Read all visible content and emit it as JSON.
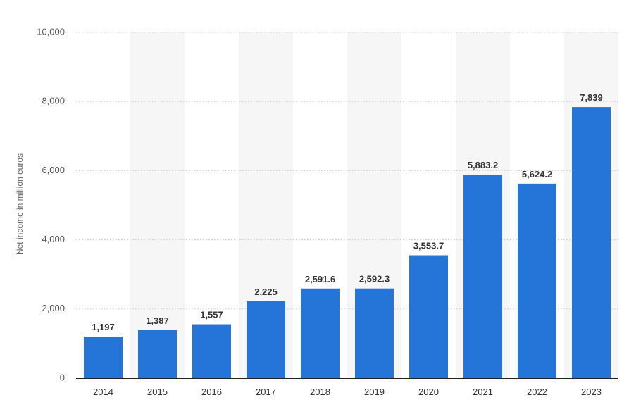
{
  "chart_data": {
    "type": "bar",
    "title": "",
    "xlabel": "",
    "ylabel": "Net income in million euros",
    "categories": [
      "2014",
      "2015",
      "2016",
      "2017",
      "2018",
      "2019",
      "2020",
      "2021",
      "2022",
      "2023"
    ],
    "values": [
      1197,
      1387,
      1557,
      2225,
      2591.6,
      2592.3,
      3553.7,
      5883.2,
      5624.2,
      7839
    ],
    "value_labels": [
      "1,197",
      "1,387",
      "1,557",
      "2,225",
      "2,591.6",
      "2,592.3",
      "3,553.7",
      "5,883.2",
      "5,624.2",
      "7,839"
    ],
    "ylim": [
      0,
      10000
    ],
    "yticks": [
      0,
      2000,
      4000,
      6000,
      8000,
      10000
    ],
    "ytick_labels": [
      "0",
      "2,000",
      "4,000",
      "6,000",
      "8,000",
      "10,000"
    ],
    "grid": true,
    "legend": "none",
    "colors": {
      "bar": "#2574d8",
      "band": "#f6f6f6",
      "grid": "#c8c8c8"
    }
  }
}
